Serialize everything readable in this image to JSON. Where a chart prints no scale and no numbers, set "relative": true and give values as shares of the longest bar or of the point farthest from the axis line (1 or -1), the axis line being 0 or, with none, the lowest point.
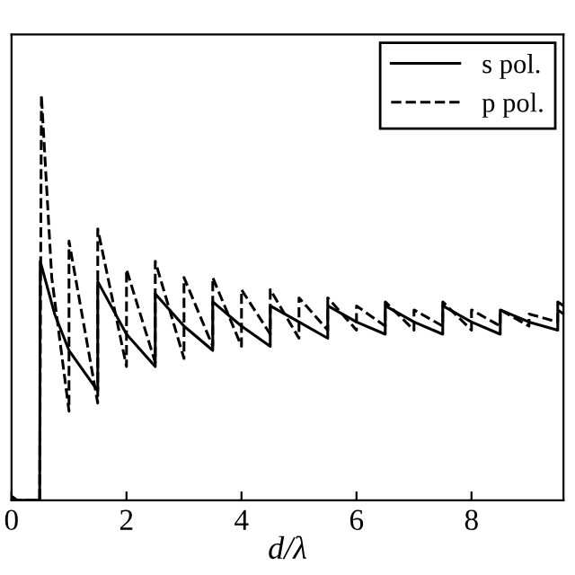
{
  "chart_data": {
    "type": "line",
    "xlabel": "d/λ",
    "relative": true,
    "xlim": [
      0,
      9.6
    ],
    "xticks": [
      0,
      2,
      4,
      6,
      8
    ],
    "tick_labels": "x",
    "grid": false,
    "legend": "top right",
    "marker": "none",
    "series": [
      {
        "name": "s pol.",
        "color": "#000000",
        "line_style": "solid",
        "x": [
          0,
          0.1,
          0.3,
          0.49,
          0.5,
          0.75,
          1.0,
          1.5,
          1.5,
          2.0,
          2.5,
          2.5,
          3.0,
          3.5,
          3.5,
          4.0,
          4.5,
          4.5,
          5.0,
          5.5,
          5.5,
          6.0,
          6.5,
          6.5,
          7.0,
          7.5,
          7.5,
          8.0,
          8.5,
          8.5,
          9.0,
          9.5,
          9.5,
          9.6
        ],
        "values": [
          0.01,
          0,
          0,
          0,
          0.59,
          0.46,
          0.37,
          0.27,
          0.54,
          0.41,
          0.33,
          0.51,
          0.43,
          0.37,
          0.49,
          0.43,
          0.38,
          0.48,
          0.44,
          0.4,
          0.48,
          0.44,
          0.41,
          0.48,
          0.44,
          0.41,
          0.48,
          0.44,
          0.41,
          0.47,
          0.44,
          0.42,
          0.49,
          0.48
        ]
      },
      {
        "name": "p pol.",
        "color": "#000000",
        "line_style": "dashed",
        "x": [
          0,
          0.49,
          0.52,
          0.7,
          1.0,
          1.0,
          1.5,
          1.5,
          2.0,
          2.0,
          2.5,
          2.5,
          3.0,
          3.0,
          3.5,
          3.5,
          4.0,
          4.0,
          4.5,
          4.5,
          5.0,
          5.0,
          5.5,
          5.5,
          6.0,
          6.0,
          6.5,
          6.5,
          7.0,
          7.0,
          7.5,
          7.5,
          8.0,
          8.0,
          8.5,
          8.5,
          9.0,
          9.0,
          9.5,
          9.5,
          9.6
        ],
        "values": [
          0,
          0,
          1.0,
          0.55,
          0.22,
          0.64,
          0.24,
          0.67,
          0.33,
          0.57,
          0.34,
          0.59,
          0.35,
          0.55,
          0.38,
          0.55,
          0.38,
          0.52,
          0.41,
          0.52,
          0.4,
          0.5,
          0.42,
          0.5,
          0.42,
          0.48,
          0.43,
          0.49,
          0.42,
          0.47,
          0.43,
          0.49,
          0.42,
          0.47,
          0.43,
          0.47,
          0.43,
          0.46,
          0.44,
          0.47,
          0.46
        ]
      }
    ]
  }
}
